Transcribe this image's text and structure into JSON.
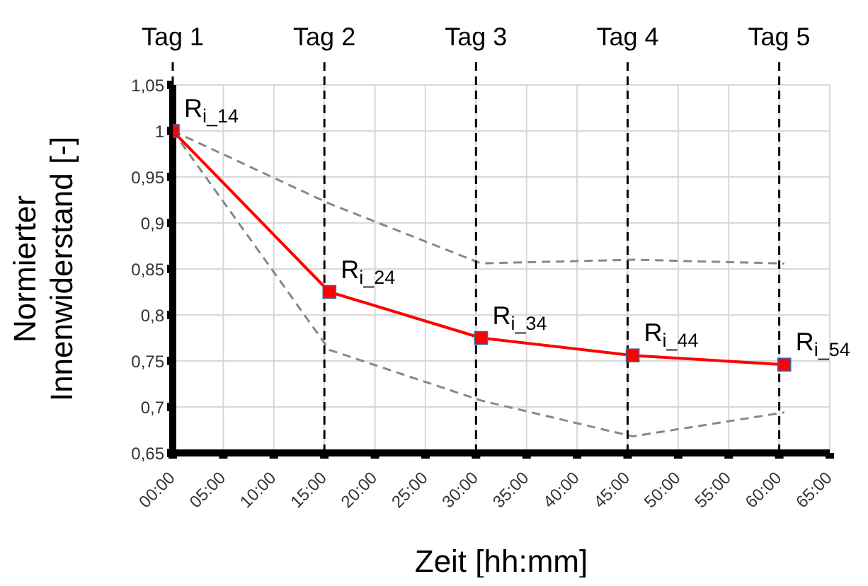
{
  "chart_data": {
    "type": "line",
    "xlabel": "Zeit [hh:mm]",
    "ylabel": "Normierter\nInnenwiderstand [-]",
    "xlim": [
      0,
      65
    ],
    "xticks": [
      {
        "value": 0,
        "label": "00:00"
      },
      {
        "value": 5,
        "label": "05:00"
      },
      {
        "value": 10,
        "label": "10:00"
      },
      {
        "value": 15,
        "label": "15:00"
      },
      {
        "value": 20,
        "label": "20:00"
      },
      {
        "value": 25,
        "label": "25:00"
      },
      {
        "value": 30,
        "label": "30:00"
      },
      {
        "value": 35,
        "label": "35:00"
      },
      {
        "value": 40,
        "label": "40:00"
      },
      {
        "value": 45,
        "label": "45:00"
      },
      {
        "value": 50,
        "label": "50:00"
      },
      {
        "value": 55,
        "label": "55:00"
      },
      {
        "value": 60,
        "label": "60:00"
      },
      {
        "value": 65,
        "label": "65:00"
      }
    ],
    "ylim": [
      0.65,
      1.05
    ],
    "yticks": [
      {
        "value": 0.65,
        "label": "0,65"
      },
      {
        "value": 0.7,
        "label": "0,7"
      },
      {
        "value": 0.75,
        "label": "0,75"
      },
      {
        "value": 0.8,
        "label": "0,8"
      },
      {
        "value": 0.85,
        "label": "0,85"
      },
      {
        "value": 0.9,
        "label": "0,9"
      },
      {
        "value": 0.95,
        "label": "0,95"
      },
      {
        "value": 1,
        "label": "1"
      },
      {
        "value": 1.05,
        "label": "1,05"
      }
    ],
    "grid": true,
    "x": [
      0,
      15.5,
      30.5,
      45.5,
      60.5
    ],
    "series": [
      {
        "color": "#888888",
        "values": [
          1,
          0.921,
          0.856,
          0.86,
          0.856
        ],
        "line_style": "dashed",
        "marker": "none"
      },
      {
        "color": "#888888",
        "values": [
          1,
          0.762,
          0.707,
          0.668,
          0.694
        ],
        "line_style": "dashed",
        "marker": "none"
      },
      {
        "color": "#ff0000",
        "values": [
          1,
          0.825,
          0.775,
          0.756,
          0.746
        ],
        "line_style": "solid",
        "marker": "square"
      }
    ],
    "ref_lines": [
      {
        "axis": "x",
        "value": 0,
        "label": "Tag 1",
        "color": "#000000",
        "line_style": "dashed"
      },
      {
        "axis": "x",
        "value": 15,
        "label": "Tag 2",
        "color": "#000000",
        "line_style": "dashed"
      },
      {
        "axis": "x",
        "value": 30,
        "label": "Tag 3",
        "color": "#000000",
        "line_style": "dashed"
      },
      {
        "axis": "x",
        "value": 45,
        "label": "Tag 4",
        "color": "#000000",
        "line_style": "dashed"
      },
      {
        "axis": "x",
        "value": 60,
        "label": "Tag 5",
        "color": "#000000",
        "line_style": "dashed"
      }
    ],
    "annotations": [
      {
        "text": "R$_{i_14}$",
        "x": 0,
        "y": 1
      },
      {
        "text": "R$_{i_24}$",
        "x": 15.5,
        "y": 0.825
      },
      {
        "text": "R$_{i_34}$",
        "x": 30.5,
        "y": 0.775
      },
      {
        "text": "R$_{i_44}$",
        "x": 45.5,
        "y": 0.756
      },
      {
        "text": "R$_{i_54}$",
        "x": 60.5,
        "y": 0.746
      }
    ]
  }
}
